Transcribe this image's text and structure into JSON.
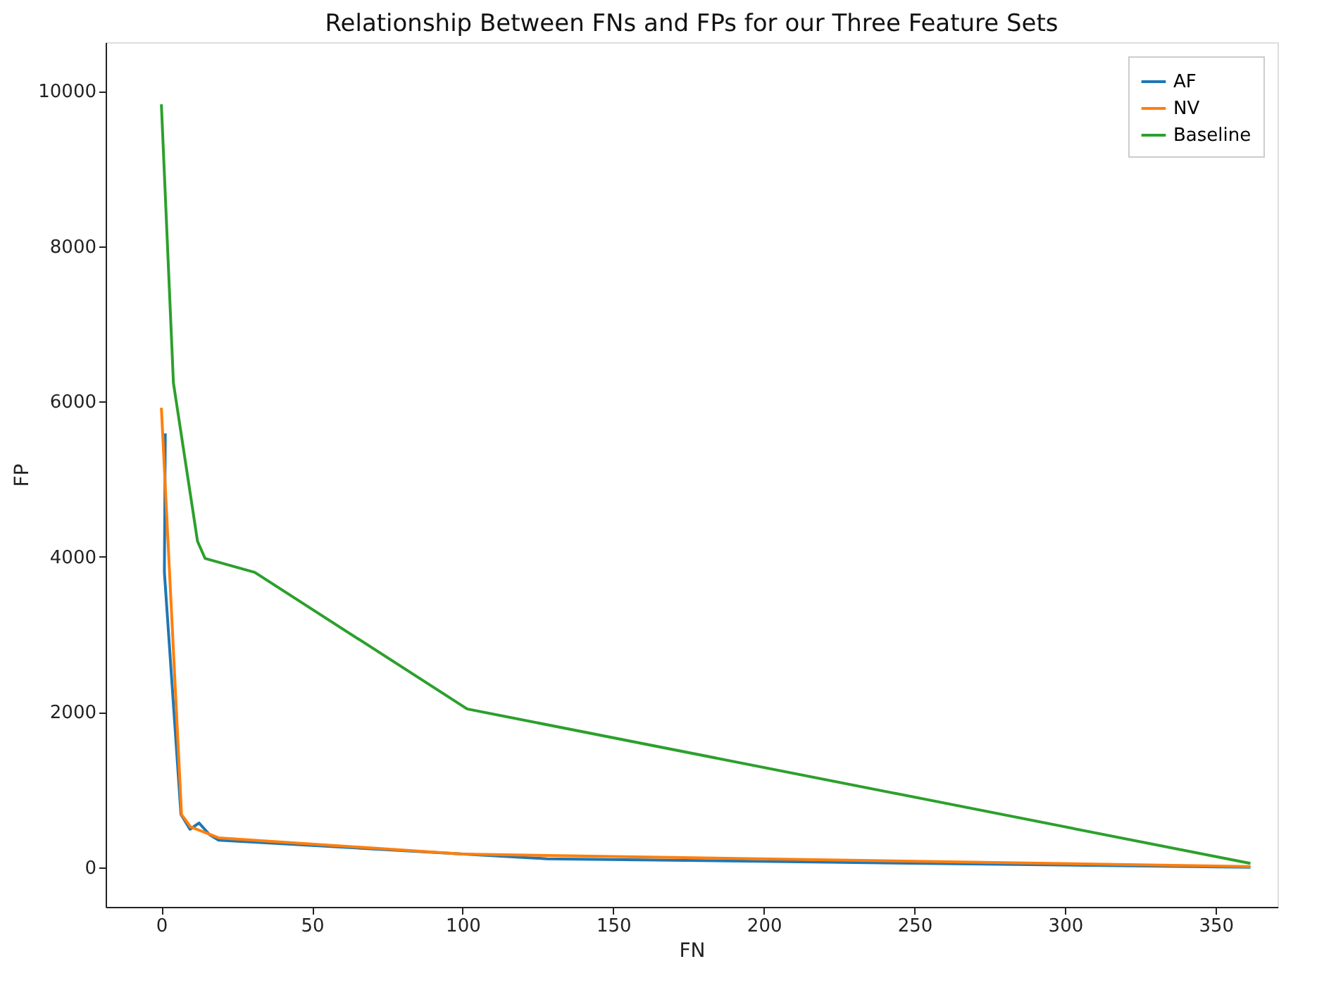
{
  "chart_data": {
    "type": "line",
    "title": "Relationship Between FNs and FPs for our Three Feature Sets",
    "xlabel": "FN",
    "ylabel": "FP",
    "xlim": [
      -18.5,
      370.5
    ],
    "ylim": [
      -510,
      10630
    ],
    "xticks": [
      0,
      50,
      100,
      150,
      200,
      250,
      300,
      350
    ],
    "yticks": [
      0,
      2000,
      4000,
      6000,
      8000,
      10000
    ],
    "grid": false,
    "legend": "top right",
    "line_style": "solid",
    "marker": "none",
    "series": [
      {
        "name": "AF",
        "color": "#1f77b4",
        "x": [
          1.3,
          1,
          6.5,
          9.5,
          12.5,
          16,
          19,
          128,
          361.5
        ],
        "values": [
          5590,
          3800,
          680,
          490,
          570,
          420,
          350,
          110,
          0
        ]
      },
      {
        "name": "NV",
        "color": "#ff7f0e",
        "x": [
          0,
          6.7,
          9.7,
          19,
          100,
          361.5
        ],
        "values": [
          5920,
          680,
          520,
          380,
          170,
          10
        ]
      },
      {
        "name": "Baseline",
        "color": "#2ca02c",
        "x": [
          0,
          4,
          12,
          14.5,
          31,
          101.5,
          361.5
        ],
        "values": [
          9830,
          6240,
          4200,
          3980,
          3800,
          2040,
          50
        ]
      }
    ]
  }
}
